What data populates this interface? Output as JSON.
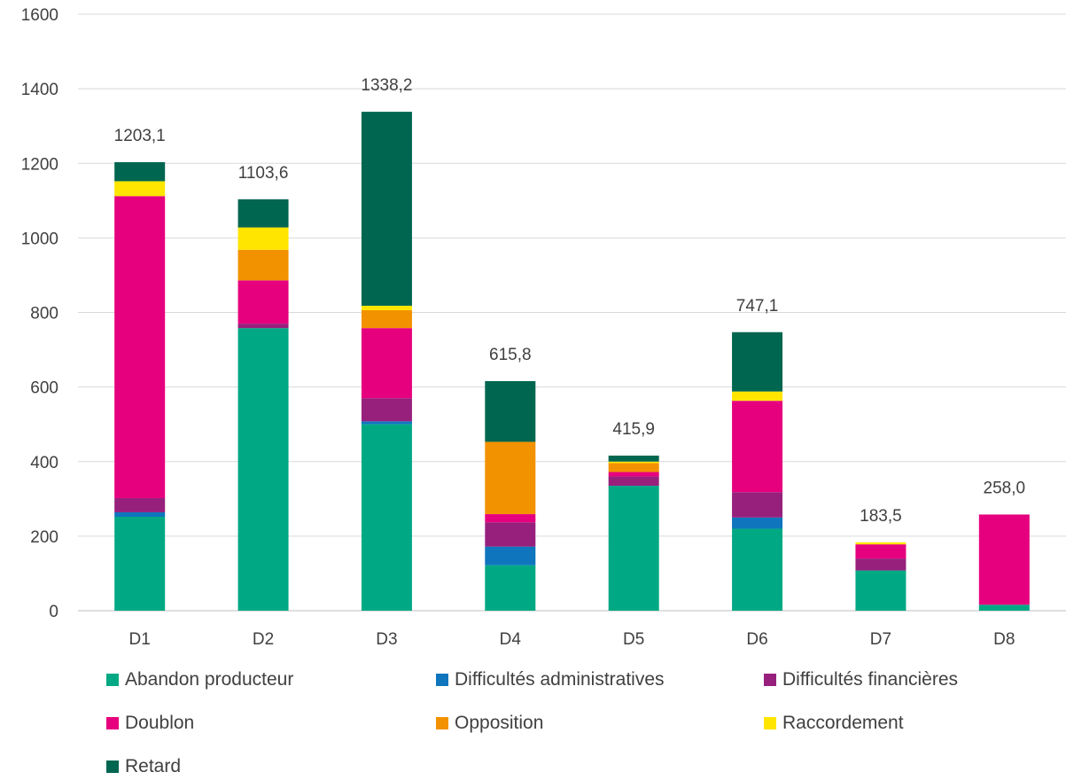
{
  "chart_data": {
    "type": "bar",
    "stacked": true,
    "title": "",
    "xlabel": "",
    "ylabel": "",
    "ylim": [
      0,
      1600
    ],
    "yticks": [
      0,
      200,
      400,
      600,
      800,
      1000,
      1200,
      1400,
      1600
    ],
    "grid": true,
    "legend_position": "bottom",
    "categories": [
      "D1",
      "D2",
      "D3",
      "D4",
      "D5",
      "D6",
      "D7",
      "D8"
    ],
    "totals": [
      "1203,1",
      "1103,6",
      "1338,2",
      "615,8",
      "415,9",
      "747,1",
      "183,5",
      "258,0"
    ],
    "series": [
      {
        "name": "Abandon producteur",
        "color": "#00A984",
        "values": [
          252,
          758,
          500,
          122,
          335,
          220,
          108,
          16
        ]
      },
      {
        "name": "Difficultés administratives",
        "color": "#0F75BD",
        "values": [
          12,
          0,
          8,
          50,
          0,
          30,
          0,
          0
        ]
      },
      {
        "name": "Difficultés financières",
        "color": "#97207D",
        "values": [
          38,
          12,
          62,
          65,
          25,
          68,
          32,
          0
        ]
      },
      {
        "name": "Doublon",
        "color": "#E6007E",
        "values": [
          810,
          116,
          188,
          22,
          12,
          245,
          38,
          242
        ]
      },
      {
        "name": "Opposition",
        "color": "#F39200",
        "values": [
          0,
          82,
          48,
          194,
          24,
          0,
          0,
          0
        ]
      },
      {
        "name": "Raccordement",
        "color": "#FFE500",
        "values": [
          40,
          60,
          12,
          0,
          4,
          25,
          5.5,
          0
        ]
      },
      {
        "name": "Retard",
        "color": "#006650",
        "values": [
          51.1,
          75.6,
          520.2,
          162.8,
          15.9,
          159.1,
          0,
          0
        ]
      }
    ]
  }
}
